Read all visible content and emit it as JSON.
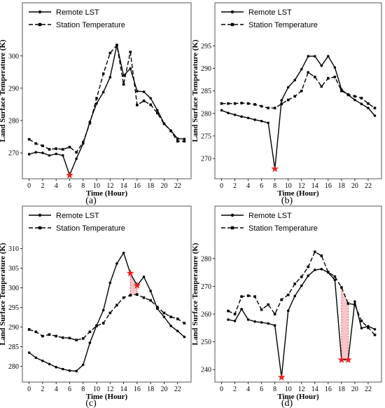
{
  "colors": {
    "line": "#000000",
    "star": "#e8201f",
    "shade": "#f3b8bd",
    "shade_edge": "#e8201f",
    "frame": "#555555"
  },
  "chart_data": [
    {
      "type": "line",
      "panel_label": "(a)",
      "xlabel": "Time (Hour)",
      "ylabel": "Land Surface Temperature (K)",
      "xlim": [
        -1,
        24
      ],
      "ylim": [
        262,
        304.5
      ],
      "xticks": [
        0,
        2,
        4,
        6,
        8,
        10,
        12,
        14,
        16,
        18,
        20,
        22
      ],
      "yticks": [
        270,
        280,
        290,
        300
      ],
      "legend": "top-left",
      "series": [
        {
          "name": "Remote LST",
          "style": "solid",
          "x": [
            0,
            1,
            2,
            3,
            4,
            5,
            6,
            7,
            8,
            9,
            10,
            11,
            12,
            13,
            14,
            15,
            16,
            17,
            18,
            19,
            20,
            21,
            22,
            23
          ],
          "values": [
            269.6,
            270.2,
            270.0,
            269.2,
            269.7,
            269.2,
            263.1,
            268.2,
            272.9,
            279.6,
            285.3,
            288.8,
            293.4,
            303.4,
            293.9,
            296.1,
            289.1,
            288.9,
            286.9,
            283.2,
            279.1,
            276.9,
            274.4,
            274.3
          ]
        },
        {
          "name": "Station Temperature",
          "style": "dashed",
          "x": [
            0,
            1,
            2,
            3,
            4,
            5,
            6,
            7,
            8,
            9,
            10,
            11,
            12,
            13,
            14,
            15,
            16,
            17,
            18,
            19,
            20,
            21,
            22,
            23
          ],
          "values": [
            274.2,
            272.9,
            272.2,
            271.1,
            271.3,
            271.1,
            271.8,
            270.2,
            273.3,
            279.2,
            286.9,
            294.5,
            300.9,
            303.3,
            291.2,
            301.2,
            284.8,
            286.1,
            284.9,
            282.3,
            279.0,
            276.8,
            273.6,
            273.6
          ]
        }
      ],
      "stars": [
        {
          "x": 6,
          "y": 263.1
        }
      ],
      "shades": []
    },
    {
      "type": "line",
      "panel_label": "(b)",
      "xlabel": "Time (Hour)",
      "ylabel": "Land Surface Temperature (K)",
      "xlim": [
        -1,
        24
      ],
      "ylim": [
        265.5,
        296
      ],
      "xticks": [
        0,
        2,
        4,
        6,
        8,
        10,
        12,
        14,
        16,
        18,
        20,
        22
      ],
      "yticks": [
        270,
        275,
        280,
        285,
        290,
        295
      ],
      "legend": "top-left",
      "series": [
        {
          "name": "Remote LST",
          "style": "solid",
          "x": [
            0,
            1,
            2,
            3,
            4,
            5,
            6,
            7,
            8,
            9,
            10,
            11,
            12,
            13,
            14,
            15,
            16,
            17,
            18,
            19,
            20,
            21,
            22,
            23
          ],
          "values": [
            280.7,
            280.1,
            279.7,
            279.3,
            279.0,
            278.6,
            278.3,
            277.9,
            267.7,
            282.9,
            285.8,
            287.4,
            289.8,
            292.7,
            292.7,
            290.6,
            292.7,
            290.2,
            285.3,
            284.1,
            283.0,
            282.1,
            281.2,
            279.5
          ]
        },
        {
          "name": "Station Temperature",
          "style": "dashed",
          "x": [
            0,
            1,
            2,
            3,
            4,
            5,
            6,
            7,
            8,
            9,
            10,
            11,
            12,
            13,
            14,
            15,
            16,
            17,
            18,
            19,
            20,
            21,
            22,
            23
          ],
          "values": [
            282.2,
            282.2,
            282.2,
            282.3,
            282.2,
            282.0,
            281.6,
            281.2,
            281.2,
            282.1,
            283.0,
            283.8,
            285.0,
            289.1,
            288.1,
            286.0,
            287.8,
            288.1,
            285.0,
            284.2,
            283.8,
            283.4,
            282.2,
            281.2
          ]
        }
      ],
      "stars": [
        {
          "x": 8,
          "y": 267.7
        }
      ],
      "shades": []
    },
    {
      "type": "line",
      "panel_label": "(c)",
      "xlabel": "Time (Hour)",
      "ylabel": "Land Surface Temperature (K)",
      "xlim": [
        -1,
        24
      ],
      "ylim": [
        276,
        311
      ],
      "xticks": [
        0,
        2,
        4,
        6,
        8,
        10,
        12,
        14,
        16,
        18,
        20,
        22
      ],
      "yticks": [
        280,
        285,
        290,
        295,
        300,
        305,
        310
      ],
      "legend": "top-left",
      "series": [
        {
          "name": "Remote LST",
          "style": "solid",
          "x": [
            0,
            1,
            2,
            3,
            4,
            5,
            6,
            7,
            8,
            9,
            10,
            11,
            12,
            13,
            14,
            15,
            16,
            17,
            18,
            19,
            20,
            21,
            22,
            23
          ],
          "values": [
            283.5,
            282.2,
            281.4,
            280.6,
            279.8,
            279.3,
            278.9,
            278.8,
            280.4,
            286.0,
            290.4,
            294.3,
            301.3,
            306.2,
            308.9,
            303.7,
            300.6,
            302.8,
            299.2,
            294.7,
            292.6,
            290.3,
            289.0,
            287.5
          ]
        },
        {
          "name": "Station Temperature",
          "style": "dashed",
          "x": [
            0,
            1,
            2,
            3,
            4,
            5,
            6,
            7,
            8,
            9,
            10,
            11,
            12,
            13,
            14,
            15,
            16,
            17,
            18,
            19,
            20,
            21,
            22,
            23
          ],
          "values": [
            289.4,
            288.8,
            287.7,
            288.1,
            287.7,
            287.3,
            287.2,
            286.7,
            287.1,
            288.8,
            290.3,
            291.0,
            293.6,
            295.6,
            297.5,
            298.1,
            298.3,
            297.5,
            296.8,
            295.1,
            293.6,
            292.6,
            292.1,
            291.0
          ]
        }
      ],
      "stars": [
        {
          "x": 15,
          "y": 303.7
        },
        {
          "x": 16,
          "y": 300.6
        }
      ],
      "shades": [
        {
          "x0": 15,
          "x1": 16
        }
      ]
    },
    {
      "type": "line",
      "panel_label": "(d)",
      "xlabel": "Time (Hour)",
      "ylabel": "Land Surface Temperature (K)",
      "xlim": [
        -1,
        24
      ],
      "ylim": [
        235.5,
        285
      ],
      "xticks": [
        0,
        2,
        4,
        6,
        8,
        10,
        12,
        14,
        16,
        18,
        20,
        22
      ],
      "yticks": [
        240,
        250,
        260,
        270,
        280
      ],
      "legend": "top-left",
      "series": [
        {
          "name": "Remote LST",
          "style": "solid",
          "x": [
            1,
            2,
            3,
            4,
            5,
            6,
            7,
            8,
            9,
            10,
            11,
            12,
            13,
            14,
            15,
            16,
            17,
            18,
            19,
            20,
            21,
            22,
            23
          ],
          "values": [
            258.0,
            257.5,
            261.8,
            258.0,
            257.3,
            257.0,
            256.6,
            255.9,
            237.2,
            261.2,
            266.5,
            270.2,
            273.8,
            275.9,
            276.2,
            275.0,
            272.3,
            243.5,
            243.5,
            264.5,
            254.9,
            255.6,
            254.5
          ]
        },
        {
          "name": "Station Temperature",
          "style": "dashed",
          "x": [
            1,
            2,
            3,
            4,
            5,
            6,
            7,
            8,
            9,
            10,
            11,
            12,
            13,
            14,
            15,
            16,
            17,
            18,
            19,
            20,
            21,
            22,
            23
          ],
          "values": [
            261.1,
            260.0,
            266.3,
            266.6,
            266.3,
            261.6,
            263.4,
            260.0,
            265.2,
            266.9,
            270.9,
            273.4,
            277.0,
            282.4,
            281.0,
            275.1,
            273.5,
            269.6,
            263.8,
            263.4,
            257.5,
            255.1,
            252.5
          ]
        }
      ],
      "stars": [
        {
          "x": 9,
          "y": 237.2
        },
        {
          "x": 18,
          "y": 243.5
        },
        {
          "x": 19,
          "y": 243.5
        }
      ],
      "shades": [
        {
          "x0": 18,
          "x1": 19
        }
      ]
    }
  ]
}
